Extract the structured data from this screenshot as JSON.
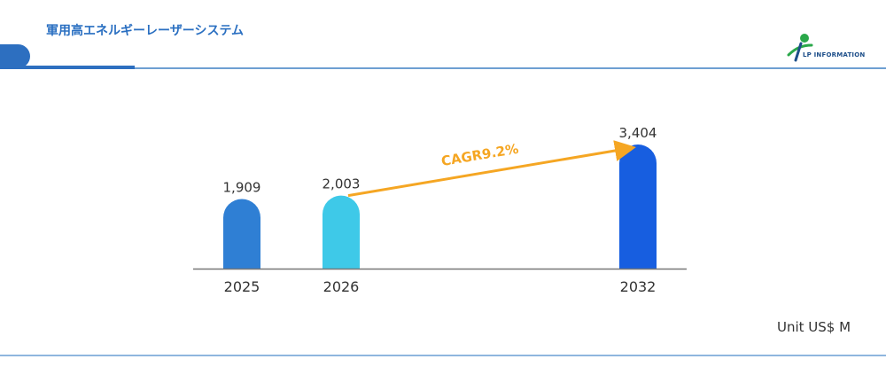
{
  "header": {
    "title": "軍用高エネルギーレーザーシステム",
    "accent_color": "#2d6fc0"
  },
  "logo": {
    "text": "LP INFORMATION",
    "icon": "lp-information-logo-icon"
  },
  "unit_label": "Unit US$ M",
  "cagr_label": "CAGR9.2%",
  "chart_data": {
    "type": "bar",
    "categories": [
      "2025",
      "2026",
      "2032"
    ],
    "values": [
      1909,
      2003,
      3404
    ],
    "value_labels": [
      "1,909",
      "2,003",
      "3,404"
    ],
    "colors": [
      "#2f7fd4",
      "#3ec9e8",
      "#175ee0"
    ],
    "annotation": {
      "text": "CAGR9.2%",
      "from": "2026",
      "to": "2032",
      "color": "#f5a623"
    },
    "ylim": [
      0,
      3404
    ],
    "grid": false,
    "legend": "none"
  }
}
